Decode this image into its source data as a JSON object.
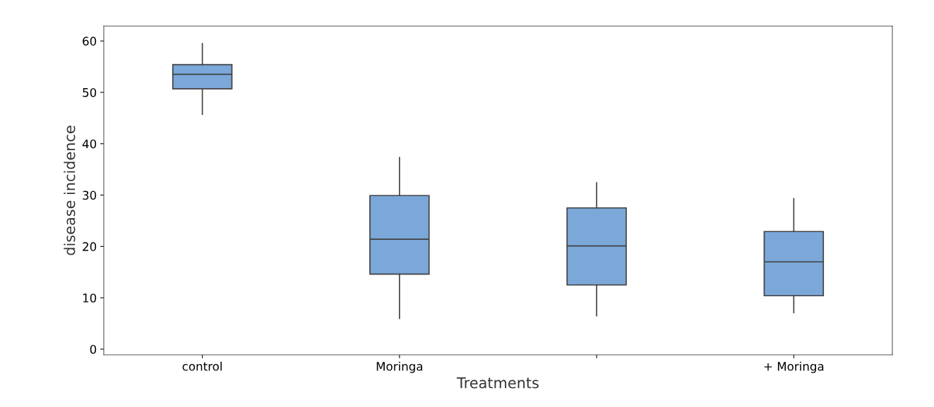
{
  "chart_data": {
    "type": "box",
    "xlabel": "Treatments",
    "ylabel": "disease incidence",
    "categories": [
      "control",
      "Moringa",
      null,
      "+ Moringa"
    ],
    "boxes": [
      {
        "low": 45.7,
        "q1": 50.7,
        "median": 53.5,
        "q3": 55.4,
        "high": 59.5
      },
      {
        "low": 6.0,
        "q1": 14.6,
        "median": 21.4,
        "q3": 29.9,
        "high": 37.3
      },
      {
        "low": 6.5,
        "q1": 12.5,
        "median": 20.1,
        "q3": 27.5,
        "high": 32.4
      },
      {
        "low": 7.1,
        "q1": 10.4,
        "median": 17.0,
        "q3": 22.9,
        "high": 29.3
      }
    ],
    "color": "#7ba7d9",
    "ylim": [
      -1.1,
      62.9
    ],
    "yticks": [
      0,
      10,
      20,
      30,
      40,
      50,
      60
    ],
    "grid": false,
    "legend": false
  }
}
